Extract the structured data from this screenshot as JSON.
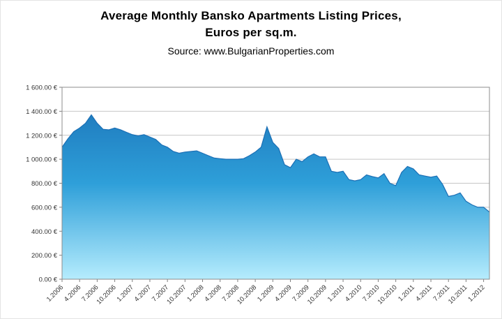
{
  "chart": {
    "title_line1": "Average Monthly Bansko Apartments Listing Prices,",
    "title_line2": "Euros per sq.m.",
    "source": "Source: www.BulgarianProperties.com"
  },
  "chart_data": {
    "type": "area",
    "title": "Average Monthly Bansko Apartments Listing Prices, Euros per sq.m.",
    "source": "Source: www.BulgarianProperties.com",
    "xlabel": "",
    "ylabel": "",
    "ylim": [
      0,
      1600
    ],
    "ytick_step": 200,
    "ytick_labels": [
      "0.00 €",
      "200.00 €",
      "400.00 €",
      "600.00 €",
      "800.00 €",
      "1 000.00 €",
      "1 200.00 €",
      "1 400.00 €",
      "1 600.00 €"
    ],
    "grid": "horizontal",
    "legend": "none",
    "x_tick_every": 3,
    "x": [
      "1.2006",
      "2.2006",
      "3.2006",
      "4.2006",
      "5.2006",
      "6.2006",
      "7.2006",
      "8.2006",
      "9.2006",
      "10.2006",
      "11.2006",
      "12.2006",
      "1.2007",
      "2.2007",
      "3.2007",
      "4.2007",
      "5.2007",
      "6.2007",
      "7.2007",
      "8.2007",
      "9.2007",
      "10.2007",
      "11.2007",
      "12.2007",
      "1.2008",
      "2.2008",
      "3.2008",
      "4.2008",
      "5.2008",
      "6.2008",
      "7.2008",
      "8.2008",
      "9.2008",
      "10.2008",
      "11.2008",
      "12.2008",
      "1.2009",
      "2.2009",
      "3.2009",
      "4.2009",
      "5.2009",
      "6.2009",
      "7.2009",
      "8.2009",
      "9.2009",
      "10.2009",
      "11.2009",
      "12.2009",
      "1.2010",
      "2.2010",
      "3.2010",
      "4.2010",
      "5.2010",
      "6.2010",
      "7.2010",
      "8.2010",
      "9.2010",
      "10.2010",
      "11.2010",
      "12.2010",
      "1.2011",
      "2.2011",
      "3.2011",
      "4.2011",
      "5.2011",
      "6.2011",
      "7.2011",
      "8.2011",
      "9.2011",
      "10.2011",
      "11.2011",
      "12.2011",
      "1.2012",
      "2.2012"
    ],
    "values": [
      1100,
      1170,
      1230,
      1260,
      1300,
      1370,
      1300,
      1250,
      1245,
      1260,
      1245,
      1225,
      1205,
      1195,
      1205,
      1185,
      1165,
      1120,
      1100,
      1065,
      1050,
      1060,
      1065,
      1070,
      1050,
      1030,
      1010,
      1005,
      1000,
      1000,
      1000,
      1005,
      1030,
      1060,
      1100,
      1270,
      1140,
      1090,
      955,
      930,
      1000,
      980,
      1020,
      1045,
      1020,
      1020,
      900,
      890,
      900,
      830,
      820,
      830,
      870,
      855,
      845,
      880,
      800,
      780,
      890,
      940,
      920,
      870,
      860,
      850,
      860,
      790,
      690,
      700,
      720,
      650,
      620,
      600,
      600,
      560
    ],
    "colors": {
      "area_top": "#1a70b6",
      "area_mid": "#2e9fd9",
      "area_bottom": "#b5ecfd",
      "line": "#1b6fb5",
      "gridline": "#c6c6c6",
      "axis": "#808080",
      "plot_border": "#8c8c8c"
    }
  }
}
